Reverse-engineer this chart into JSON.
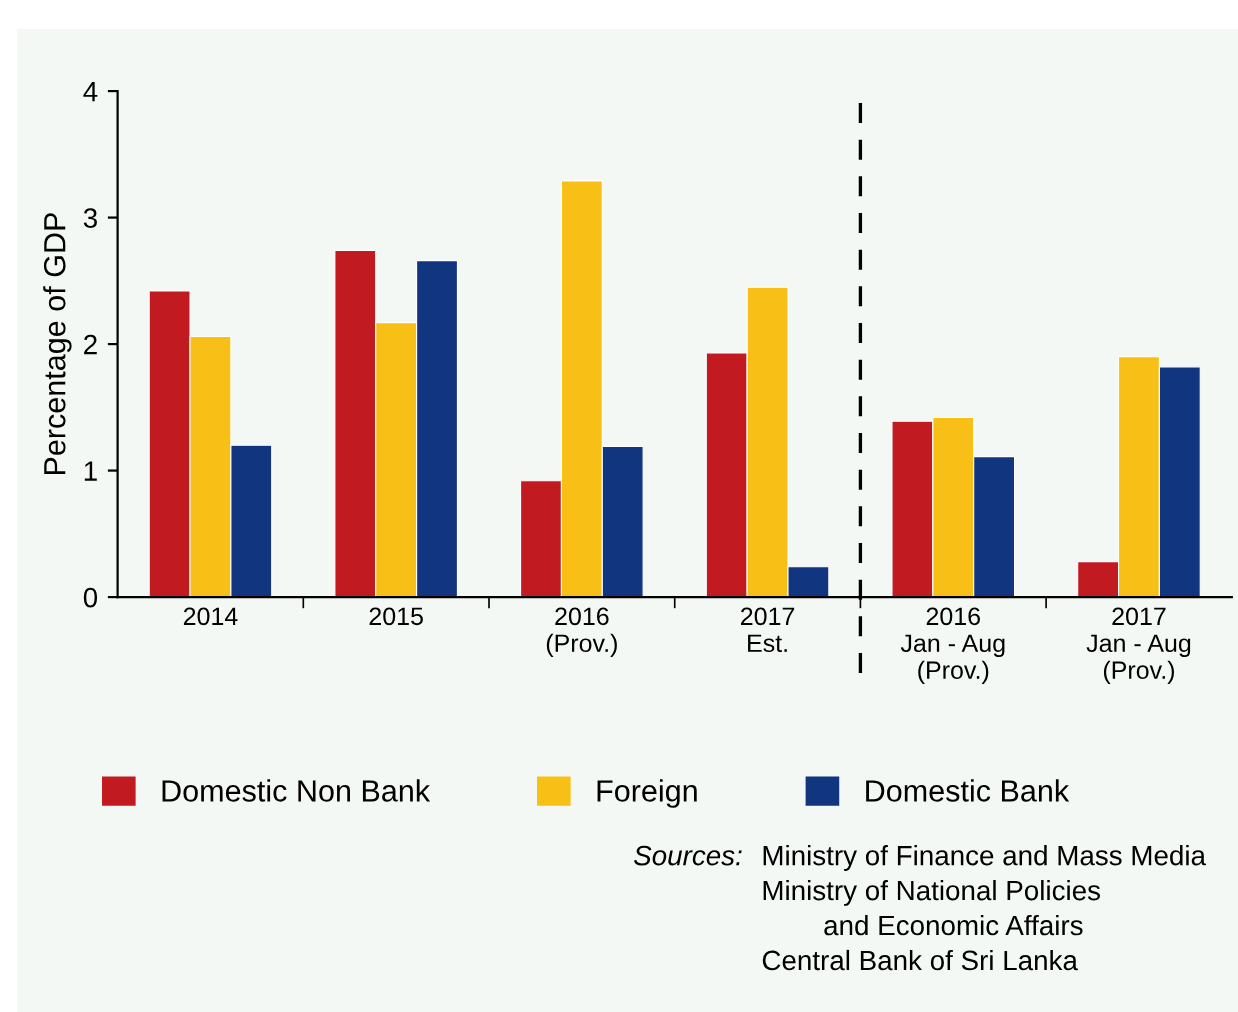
{
  "chart_data": {
    "type": "bar",
    "ylabel": "Percentage of GDP",
    "categories": [
      "2014",
      "2015",
      "2016\n(Prov.)",
      "2017\nEst.",
      "2016\nJan - Aug\n(Prov.)",
      "2017\nJan - Aug\n(Prov.)"
    ],
    "series": [
      {
        "name": "Domestic Non Bank",
        "color": "#c11b21",
        "values": [
          2.42,
          2.74,
          0.92,
          1.93,
          1.39,
          0.28
        ]
      },
      {
        "name": "Foreign",
        "color": "#f8bf17",
        "values": [
          2.06,
          2.17,
          3.29,
          2.45,
          1.42,
          1.9
        ]
      },
      {
        "name": "Domestic Bank",
        "color": "#11357e",
        "values": [
          1.2,
          2.66,
          1.19,
          0.24,
          1.11,
          1.82
        ]
      }
    ],
    "ylim": [
      0,
      4
    ],
    "yticks": [
      0,
      1,
      2,
      3,
      4
    ],
    "grid": false,
    "legend": "bottom",
    "annotations": [
      "Sources:",
      "Ministry of Finance and Mass Media\nMinistry of National Policies\n        and Economic Affairs\nCentral Bank of Sri Lanka"
    ]
  }
}
